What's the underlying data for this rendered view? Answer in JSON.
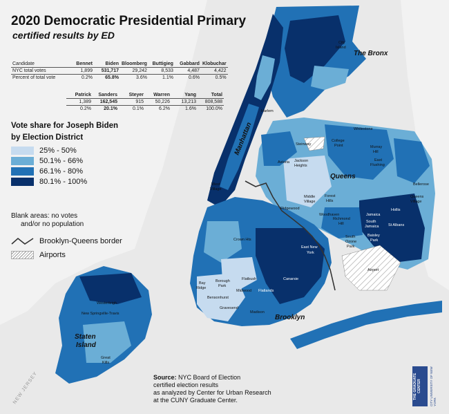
{
  "title": "2020 Democratic Presidential Primary",
  "subtitle": "certified results by ED",
  "results_table": {
    "row_labels": [
      "Candidate",
      "NYC total votes",
      "Percent of total vote"
    ],
    "group1": [
      {
        "name": "Bennet",
        "votes": "1,899",
        "percent": "0.2%"
      },
      {
        "name": "Biden",
        "votes": "531,717",
        "percent": "65.8%"
      },
      {
        "name": "Bloomberg",
        "votes": "29,242",
        "percent": "3.6%"
      },
      {
        "name": "Buttigieg",
        "votes": "8,533",
        "percent": "1.1%"
      },
      {
        "name": "Gabbard",
        "votes": "4,487",
        "percent": "0.6%"
      },
      {
        "name": "Klobuchar",
        "votes": "4,422",
        "percent": "0.5%"
      }
    ],
    "group2": [
      {
        "name": "Patrick",
        "votes": "1,389",
        "percent": "0.2%"
      },
      {
        "name": "Sanders",
        "votes": "162,545",
        "percent": "20.1%"
      },
      {
        "name": "Steyer",
        "votes": "915",
        "percent": "0.1%"
      },
      {
        "name": "Warren",
        "votes": "50,226",
        "percent": "6.2%"
      },
      {
        "name": "Yang",
        "votes": "13,213",
        "percent": "1.6%"
      },
      {
        "name": "Total",
        "votes": "808,588",
        "percent": "100.0%"
      }
    ]
  },
  "legend": {
    "title_line1": "Vote share for Joseph Biden",
    "title_line2": "by Election District",
    "classes": [
      {
        "label": "25% - 50%",
        "color": "#c6dbef"
      },
      {
        "label": "50.1% - 66%",
        "color": "#6baed6"
      },
      {
        "label": "66.1% - 80%",
        "color": "#2171b5"
      },
      {
        "label": "80.1% - 100%",
        "color": "#08306b"
      }
    ],
    "blank_note_line1": "Blank areas: no votes",
    "blank_note_line2": "and/or no population",
    "border_label": "Brooklyn-Queens border",
    "airports_label": "Airports"
  },
  "boroughs": {
    "manhattan": "Manhattan",
    "bronx": "The Bronx",
    "queens": "Queens",
    "brooklyn": "Brooklyn",
    "staten_line1": "Staten",
    "staten_line2": "Island"
  },
  "places": {
    "astoria": "Astoria",
    "ridgewood": "Ridgewood",
    "crown_hts": "Crown Hts",
    "east_ny_line1": "East New",
    "east_ny_line2": "York",
    "canarsie": "Canarsie",
    "flatlands": "Flatlands",
    "flatbush": "Flatbush",
    "midwood": "Midwood",
    "gravesend": "Gravesend",
    "borough_park_line1": "Borough",
    "borough_park_line2": "Park",
    "bay_ridge_line1": "Bay",
    "bay_ridge_line2": "Ridge",
    "whitestone": "Whitestone",
    "jamaica": "Jamaica",
    "st_albans": "St Albans",
    "hollis": "Hollis",
    "bellerose": "Bellerose",
    "westerleigh": "Westerleigh",
    "new_springville": "New Springville-Travis",
    "airport": "Airport",
    "city_island_line1": "City",
    "city_island_line2": "Island",
    "richmond_hill_line1": "Richmond",
    "richmond_hill_line2": "Hill",
    "queens_village_line1": "Queens",
    "queens_village_line2": "Village",
    "baisley_line1": "Baisley",
    "baisley_line2": "Park",
    "madison": "Madison",
    "great_kills_line1": "Great",
    "great_kills_line2": "Kills",
    "steinway": "Steinway",
    "college_point_line1": "College",
    "college_point_line2": "Point",
    "murray_hill_line1": "Murray",
    "murray_hill_line2": "Hill",
    "east_flushing_line1": "East",
    "east_flushing_line2": "Flushing",
    "forest_hills_line1": "Forest",
    "forest_hills_line2": "Hills",
    "middle_village_line1": "Middle",
    "middle_village_line2": "Village",
    "jackson_heights_line1": "Jackson",
    "jackson_heights_line2": "Heights",
    "woodhaven": "Woodhaven",
    "south_ozone_line1": "South",
    "south_ozone_line2": "Ozone",
    "south_ozone_line3": "Park",
    "south_jamaica_line1": "South",
    "south_jamaica_line2": "Jamaica",
    "bensonhurst": "Bensonhurst",
    "west_village_line1": "West",
    "west_village_line2": "Village",
    "harlem": "Harlem"
  },
  "source": {
    "label": "Source:",
    "line1": "NYC Board of Election",
    "line2": "certified election results",
    "line3": "as analyzed by Center for Urban Research",
    "line4": "at the CUNY Graduate Center."
  },
  "logo": {
    "text": "THE GRADUATE CENTER",
    "sub": "CITY UNIVERSITY OF NEW YORK"
  },
  "new_jersey": "NEW JERSEY",
  "colors": {
    "water": "#e9e9e9",
    "land": "#ffffff",
    "class1": "#c6dbef",
    "class2": "#6baed6",
    "class3": "#2171b5",
    "class4": "#08306b",
    "border": "#333333"
  }
}
